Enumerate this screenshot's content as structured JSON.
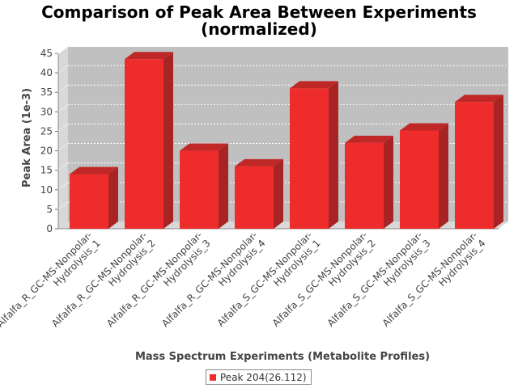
{
  "chart_data": {
    "type": "bar",
    "title": "Comparison of Peak Area Between Experiments",
    "subtitle": "(normalized)",
    "xlabel": "Mass Spectrum Experiments (Metabolite Profiles)",
    "ylabel": "Peak Area (1e-3)",
    "ylim": [
      0,
      45
    ],
    "yticks": [
      "0",
      "5",
      "10",
      "15",
      "20",
      "25",
      "30",
      "35",
      "40",
      "45"
    ],
    "grid": true,
    "legend_position": "bottom",
    "categories": [
      [
        "Alfalfa_R_GC-MS-Nonpolar-",
        "Hydrolysis_1"
      ],
      [
        "Alfalfa_R_GC-MS-Nonpolar-",
        "Hydrolysis_2"
      ],
      [
        "Alfalfa_R_GC-MS-Nonpolar-",
        "Hydrolysis_3"
      ],
      [
        "Alfalfa_R_GC-MS-Nonpolar-",
        "Hydrolysis_4"
      ],
      [
        "Alfalfa_S_GC-MS-Nonpolar-",
        "Hydrolysis_1"
      ],
      [
        "Alfalfa_S_GC-MS-Nonpolar-",
        "Hydrolysis_2"
      ],
      [
        "Alfalfa_S_GC-MS-Nonpolar-",
        "Hydrolysis_3"
      ],
      [
        "Alfalfa_S_GC-MS-Nonpolar-",
        "Hydrolysis_4"
      ]
    ],
    "series": [
      {
        "name": "Peak 204(26.112)",
        "color": "#ee2c2c",
        "values": [
          14.0,
          43.5,
          20.0,
          16.0,
          36.0,
          22.0,
          25.2,
          32.5
        ]
      }
    ],
    "colors": {
      "plot_background": "#c0c0c0",
      "plot_wall": "#d8d8d8",
      "bar_front": "#ee2c2c",
      "bar_top": "#c02828",
      "bar_side": "#a82424",
      "axis_text": "#444444"
    }
  }
}
